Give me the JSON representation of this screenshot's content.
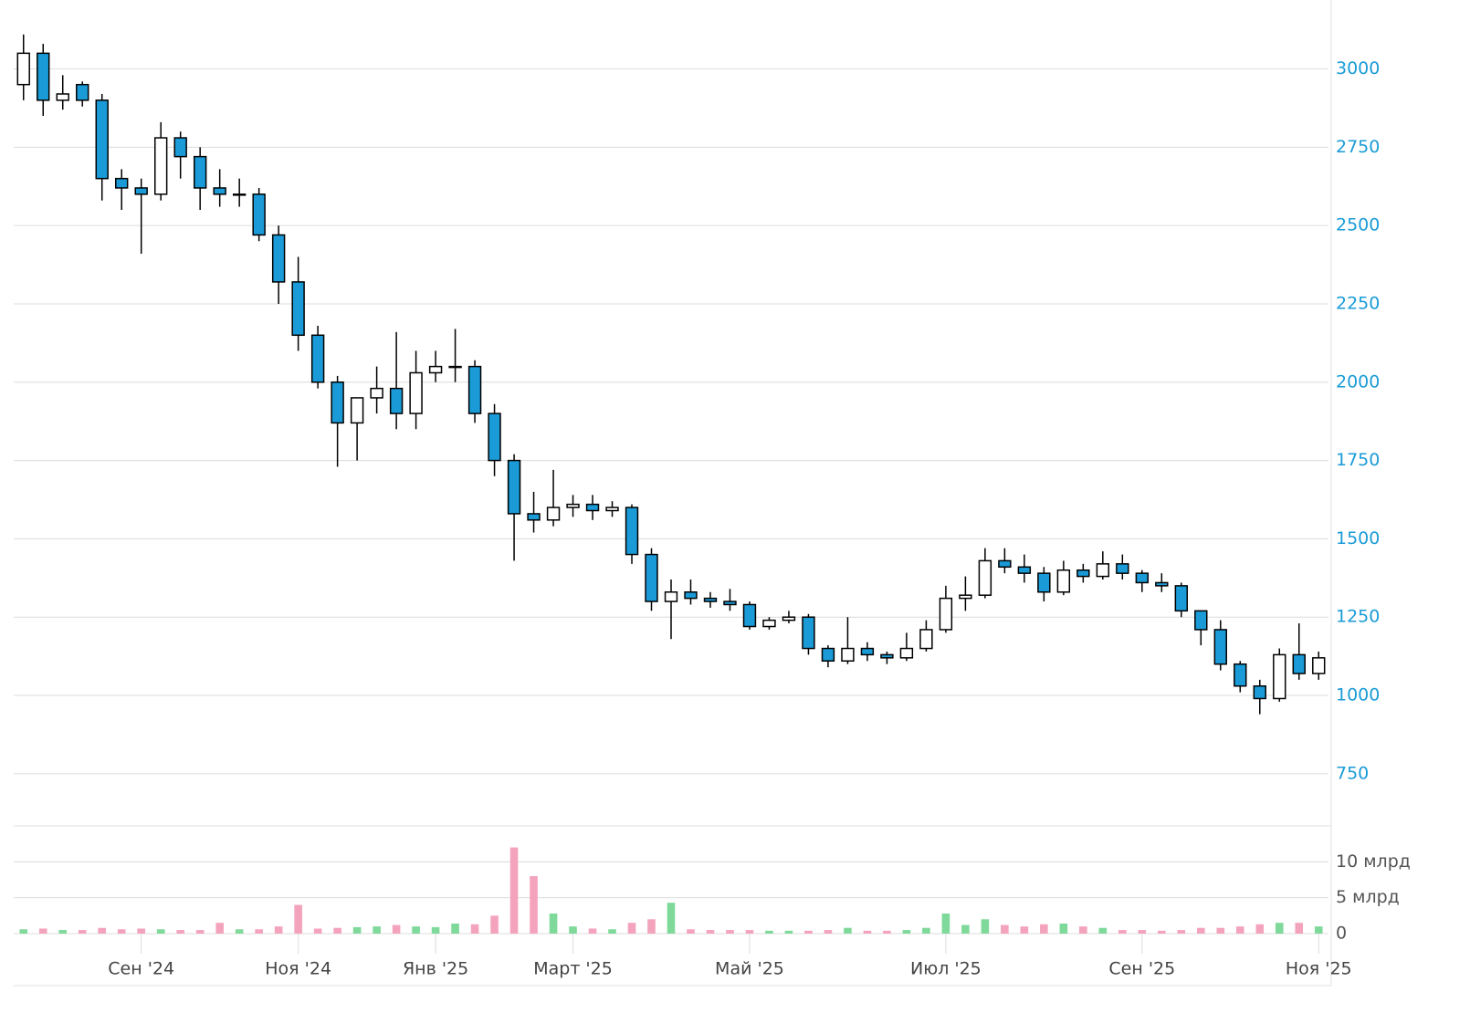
{
  "chart_data": {
    "type": "candlestick",
    "categories": [
      null,
      null,
      null,
      null,
      null,
      null,
      "Сен '24",
      null,
      null,
      null,
      null,
      null,
      null,
      null,
      "Ноя '24",
      null,
      null,
      null,
      null,
      null,
      null,
      "Янв '25",
      null,
      null,
      null,
      null,
      null,
      null,
      "Март '25",
      null,
      null,
      null,
      null,
      null,
      null,
      null,
      null,
      "Май '25",
      null,
      null,
      null,
      null,
      null,
      null,
      null,
      null,
      null,
      "Июл '25",
      null,
      null,
      null,
      null,
      null,
      null,
      null,
      null,
      null,
      "Сен '25",
      null,
      null,
      null,
      null,
      null,
      null,
      null,
      null,
      "Ноя '25"
    ],
    "open": [
      2950,
      3050,
      2900,
      2950,
      2900,
      2650,
      2620,
      2600,
      2780,
      2720,
      2620,
      2600,
      2600,
      2470,
      2320,
      2150,
      2000,
      1870,
      1950,
      1980,
      1900,
      2030,
      2050,
      2050,
      1900,
      1750,
      1580,
      1560,
      1600,
      1610,
      1590,
      1600,
      1450,
      1300,
      1330,
      1310,
      1300,
      1290,
      1220,
      1240,
      1250,
      1150,
      1110,
      1150,
      1130,
      1120,
      1150,
      1210,
      1310,
      1320,
      1430,
      1410,
      1390,
      1330,
      1400,
      1380,
      1420,
      1390,
      1360,
      1350,
      1270,
      1210,
      1100,
      1030,
      990,
      1130,
      1070
    ],
    "high": [
      3110,
      3080,
      2980,
      2960,
      2920,
      2680,
      2650,
      2830,
      2800,
      2750,
      2680,
      2650,
      2620,
      2500,
      2400,
      2180,
      2020,
      1950,
      2050,
      2160,
      2100,
      2100,
      2170,
      2070,
      1930,
      1770,
      1650,
      1720,
      1640,
      1640,
      1620,
      1610,
      1470,
      1370,
      1370,
      1330,
      1340,
      1300,
      1250,
      1270,
      1260,
      1160,
      1250,
      1170,
      1140,
      1200,
      1240,
      1350,
      1380,
      1470,
      1470,
      1450,
      1410,
      1430,
      1420,
      1460,
      1450,
      1400,
      1390,
      1360,
      1260,
      1240,
      1110,
      1050,
      1150,
      1230,
      1140
    ],
    "low": [
      2900,
      2850,
      2870,
      2880,
      2580,
      2550,
      2410,
      2580,
      2650,
      2550,
      2560,
      2560,
      2450,
      2250,
      2100,
      1980,
      1730,
      1750,
      1900,
      1850,
      1850,
      2000,
      2000,
      1870,
      1700,
      1430,
      1520,
      1540,
      1570,
      1560,
      1570,
      1420,
      1270,
      1180,
      1290,
      1280,
      1270,
      1210,
      1210,
      1230,
      1130,
      1090,
      1100,
      1110,
      1100,
      1110,
      1140,
      1200,
      1270,
      1310,
      1390,
      1360,
      1300,
      1320,
      1360,
      1370,
      1370,
      1330,
      1330,
      1250,
      1160,
      1080,
      1010,
      940,
      980,
      1050,
      1050
    ],
    "close": [
      3050,
      2900,
      2920,
      2900,
      2650,
      2620,
      2600,
      2780,
      2720,
      2620,
      2600,
      2600,
      2470,
      2320,
      2150,
      2000,
      1870,
      1950,
      1980,
      1900,
      2030,
      2050,
      2050,
      1900,
      1750,
      1580,
      1560,
      1600,
      1610,
      1590,
      1600,
      1450,
      1300,
      1330,
      1310,
      1300,
      1290,
      1220,
      1240,
      1250,
      1150,
      1110,
      1150,
      1130,
      1120,
      1150,
      1210,
      1310,
      1320,
      1430,
      1410,
      1390,
      1330,
      1400,
      1380,
      1420,
      1390,
      1360,
      1350,
      1270,
      1210,
      1100,
      1030,
      990,
      1130,
      1070,
      1120
    ],
    "volume": [
      0.6,
      0.7,
      0.5,
      0.5,
      0.8,
      0.6,
      0.7,
      0.6,
      0.5,
      0.5,
      1.5,
      0.6,
      0.6,
      1.0,
      4.0,
      0.7,
      0.8,
      0.9,
      1.0,
      1.2,
      1.0,
      0.9,
      1.4,
      1.3,
      2.5,
      12.0,
      8.0,
      2.8,
      1.0,
      0.7,
      0.6,
      1.5,
      2.0,
      4.3,
      0.6,
      0.5,
      0.5,
      0.5,
      0.4,
      0.4,
      0.4,
      0.5,
      0.8,
      0.4,
      0.4,
      0.5,
      0.8,
      2.8,
      1.2,
      2.0,
      1.2,
      1.0,
      1.3,
      1.4,
      1.0,
      0.8,
      0.5,
      0.5,
      0.4,
      0.5,
      0.8,
      0.8,
      1.0,
      1.3,
      1.5,
      1.5,
      1.0
    ],
    "up_color": "#ffffff",
    "down_color": "#1a9bd7",
    "volume_up_color": "#7fd99a",
    "volume_down_color": "#f4a3bd",
    "ylim": [
      700,
      3220
    ],
    "yticks": [
      750,
      1000,
      1250,
      1500,
      1750,
      2000,
      2250,
      2500,
      2750,
      3000
    ],
    "volume_ylim": [
      0,
      15
    ],
    "volume_yticks": [
      {
        "value": 0,
        "label": "0"
      },
      {
        "value": 5,
        "label": "5 млрд"
      },
      {
        "value": 10,
        "label": "10 млрд"
      }
    ],
    "grid": true
  }
}
